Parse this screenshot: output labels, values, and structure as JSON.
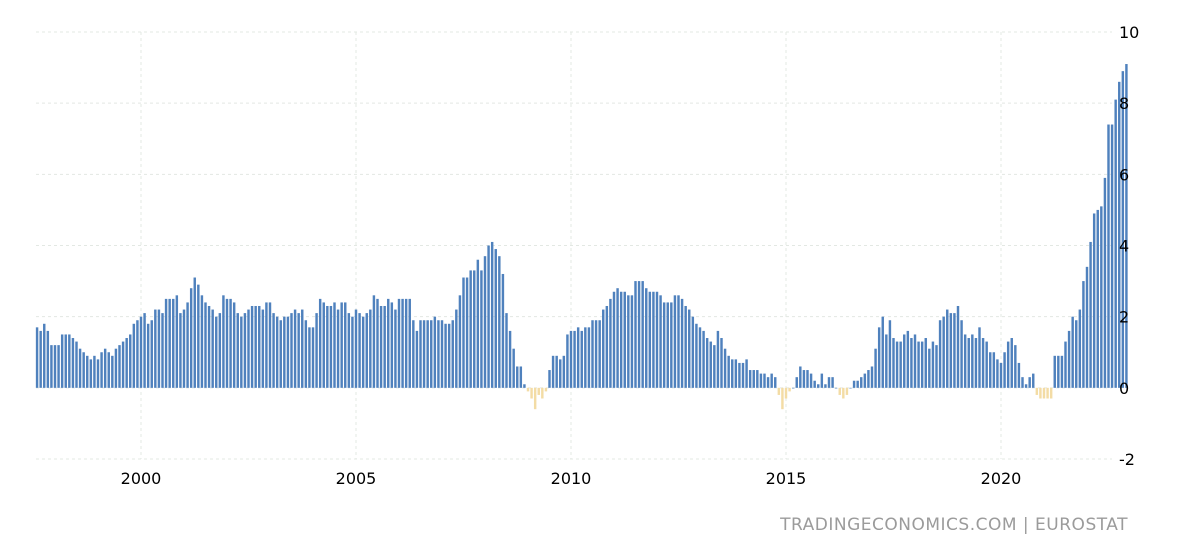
{
  "chart_data": {
    "type": "bar",
    "title": "",
    "xlabel": "",
    "ylabel": "",
    "ylim": [
      -2,
      10
    ],
    "yticks": [
      "-2",
      "0",
      "2",
      "4",
      "6",
      "8",
      "10"
    ],
    "xticks": [
      "2000",
      "2005",
      "2010",
      "2015",
      "2020"
    ],
    "x_start": "1997-08",
    "frequency": "monthly",
    "grid": true,
    "colors": {
      "positive": "#4f81bd",
      "negative": "#f3dca5",
      "grid": "#e3e8e3"
    },
    "series": [
      {
        "values": [
          1.7,
          1.6,
          1.8,
          1.6,
          1.2,
          1.2,
          1.2,
          1.5,
          1.5,
          1.5,
          1.4,
          1.3,
          1.1,
          1.0,
          0.9,
          0.8,
          0.9,
          0.8,
          1.0,
          1.1,
          1.0,
          0.9,
          1.1,
          1.2,
          1.3,
          1.4,
          1.5,
          1.8,
          1.9,
          2.0,
          2.1,
          1.8,
          1.9,
          2.2,
          2.2,
          2.1,
          2.5,
          2.5,
          2.5,
          2.6,
          2.1,
          2.2,
          2.4,
          2.8,
          3.1,
          2.9,
          2.6,
          2.4,
          2.3,
          2.2,
          2.0,
          2.1,
          2.6,
          2.5,
          2.5,
          2.4,
          2.1,
          2.0,
          2.1,
          2.2,
          2.3,
          2.3,
          2.3,
          2.2,
          2.4,
          2.4,
          2.1,
          2.0,
          1.9,
          2.0,
          2.0,
          2.1,
          2.2,
          2.1,
          2.2,
          1.9,
          1.7,
          1.7,
          2.1,
          2.5,
          2.4,
          2.3,
          2.3,
          2.4,
          2.2,
          2.4,
          2.4,
          2.1,
          2.0,
          2.2,
          2.1,
          2.0,
          2.1,
          2.2,
          2.6,
          2.5,
          2.3,
          2.3,
          2.5,
          2.4,
          2.2,
          2.5,
          2.5,
          2.5,
          2.5,
          1.9,
          1.6,
          1.9,
          1.9,
          1.9,
          1.9,
          2.0,
          1.9,
          1.9,
          1.8,
          1.8,
          1.9,
          2.2,
          2.6,
          3.1,
          3.1,
          3.3,
          3.3,
          3.6,
          3.3,
          3.7,
          4.0,
          4.1,
          3.9,
          3.7,
          3.2,
          2.1,
          1.6,
          1.1,
          0.6,
          0.6,
          0.1,
          -0.1,
          -0.3,
          -0.6,
          -0.2,
          -0.3,
          -0.1,
          0.5,
          0.9,
          0.9,
          0.8,
          0.9,
          1.5,
          1.6,
          1.6,
          1.7,
          1.6,
          1.7,
          1.7,
          1.9,
          1.9,
          1.9,
          2.2,
          2.3,
          2.5,
          2.7,
          2.8,
          2.7,
          2.7,
          2.6,
          2.6,
          3.0,
          3.0,
          3.0,
          2.8,
          2.7,
          2.7,
          2.7,
          2.6,
          2.4,
          2.4,
          2.4,
          2.6,
          2.6,
          2.5,
          2.3,
          2.2,
          2.0,
          1.8,
          1.7,
          1.6,
          1.4,
          1.3,
          1.2,
          1.6,
          1.4,
          1.1,
          0.9,
          0.8,
          0.8,
          0.7,
          0.7,
          0.8,
          0.5,
          0.5,
          0.5,
          0.4,
          0.4,
          0.3,
          0.4,
          0.3,
          -0.2,
          -0.6,
          -0.3,
          -0.1,
          0.0,
          0.3,
          0.6,
          0.5,
          0.5,
          0.4,
          0.2,
          0.1,
          0.4,
          0.1,
          0.3,
          0.3,
          0.0,
          -0.2,
          -0.3,
          -0.2,
          0.0,
          0.2,
          0.2,
          0.3,
          0.4,
          0.5,
          0.6,
          1.1,
          1.7,
          2.0,
          1.5,
          1.9,
          1.4,
          1.3,
          1.3,
          1.5,
          1.6,
          1.4,
          1.5,
          1.3,
          1.3,
          1.4,
          1.1,
          1.3,
          1.2,
          1.9,
          2.0,
          2.2,
          2.1,
          2.1,
          2.3,
          1.9,
          1.5,
          1.4,
          1.5,
          1.4,
          1.7,
          1.4,
          1.3,
          1.0,
          1.0,
          0.8,
          0.7,
          1.0,
          1.3,
          1.4,
          1.2,
          0.7,
          0.3,
          0.1,
          0.3,
          0.4,
          -0.2,
          -0.3,
          -0.3,
          -0.3,
          -0.3,
          0.9,
          0.9,
          0.9,
          1.3,
          1.6,
          2.0,
          1.9,
          2.2,
          3.0,
          3.4,
          4.1,
          4.9,
          5.0,
          5.1,
          5.9,
          7.4,
          7.4,
          8.1,
          8.6,
          8.9,
          9.1
        ]
      }
    ],
    "source": "TRADINGECONOMICS.COM  |  EUROSTAT"
  }
}
